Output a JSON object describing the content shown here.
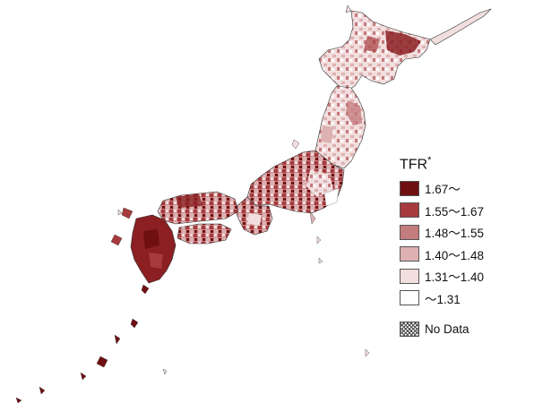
{
  "legend": {
    "title": "TFR",
    "title_mark": "*",
    "classes": [
      {
        "label": "1.67～",
        "color": "#6f0f12"
      },
      {
        "label": "1.55～1.67",
        "color": "#a63a3c"
      },
      {
        "label": "1.48～1.55",
        "color": "#c47b7d"
      },
      {
        "label": "1.40～1.48",
        "color": "#ddb1b2"
      },
      {
        "label": "1.31～1.40",
        "color": "#f2dede"
      },
      {
        "label": "～1.31",
        "color": "#ffffff"
      }
    ],
    "no_data_label": "No Data"
  }
}
